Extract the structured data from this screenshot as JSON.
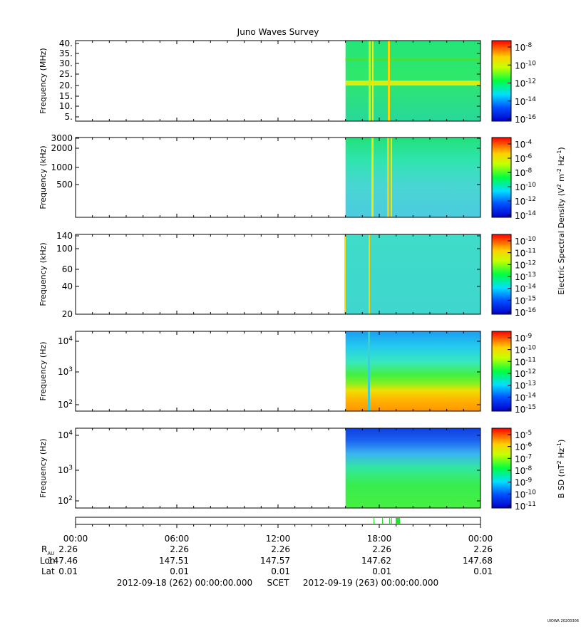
{
  "chart_data": {
    "type": "heatmap",
    "title": "Juno Waves Survey",
    "x": {
      "ticks": [
        "00:00",
        "06:00",
        "12:00",
        "18:00",
        "00:00"
      ],
      "data_start_hour": 16.0
    },
    "panels": [
      {
        "ylabel": "Frequency (MHz)",
        "yticks": [
          "40.",
          "35.",
          "30.",
          "25.",
          "20.",
          "15.",
          "10.",
          "5."
        ],
        "colorbar": {
          "exponents": [
            "-8",
            "-10",
            "-12",
            "-14",
            "-16"
          ]
        }
      },
      {
        "ylabel": "Frequency (kHz)",
        "yticks": [
          "3000",
          "2000",
          "1000",
          "500"
        ],
        "colorbar": {
          "exponents": [
            "-4",
            "-6",
            "-8",
            "-10",
            "-12",
            "-14"
          ]
        }
      },
      {
        "ylabel": "Frequency (kHz)",
        "yticks": [
          "140",
          "100",
          "60",
          "40",
          "20"
        ],
        "colorbar": {
          "exponents": [
            "-10",
            "-11",
            "-12",
            "-13",
            "-14",
            "-15",
            "-16"
          ]
        }
      },
      {
        "ylabel": "Frequency (Hz)",
        "yticks": [
          {
            "base": "10",
            "exp": "4"
          },
          {
            "base": "10",
            "exp": "3"
          },
          {
            "base": "10",
            "exp": "2"
          }
        ],
        "colorbar": {
          "exponents": [
            "-9",
            "-10",
            "-11",
            "-12",
            "-13",
            "-14",
            "-15"
          ]
        }
      },
      {
        "ylabel": "Frequency (Hz)",
        "yticks": [
          {
            "base": "10",
            "exp": "4"
          },
          {
            "base": "10",
            "exp": "3"
          },
          {
            "base": "10",
            "exp": "2"
          }
        ],
        "colorbar": {
          "exponents": [
            "-5",
            "-6",
            "-7",
            "-8",
            "-9",
            "-10",
            "-11"
          ]
        }
      }
    ],
    "colorbar_labels": {
      "electric": {
        "pre": "Electric Spectral Density (V",
        "sup1": "2",
        "mid": " m",
        "sup2": "-2",
        "mid2": " Hz",
        "sup3": "-1",
        "post": ")"
      },
      "magnetic": {
        "pre": "B SD (nT",
        "sup1": "2",
        "mid": " Hz",
        "sup2": "-1",
        "post": ")"
      }
    },
    "ephemeris": {
      "labels": {
        "r": "R",
        "r_sub": "AU",
        "lon": "Lon",
        "lat": "Lat"
      },
      "r": [
        "2.26",
        "2.26",
        "2.26",
        "2.26",
        "2.26"
      ],
      "lon": [
        "147.46",
        "147.51",
        "147.57",
        "147.62",
        "147.68"
      ],
      "lat": [
        "0.01",
        "0.01",
        "0.01",
        "0.01",
        "0.01"
      ]
    },
    "footer": {
      "start": "2012-09-18 (262) 00:00:00.000",
      "scet": "SCET",
      "end": "2012-09-19 (263) 00:00:00.000"
    },
    "credit": "UIOWA 20200306"
  }
}
